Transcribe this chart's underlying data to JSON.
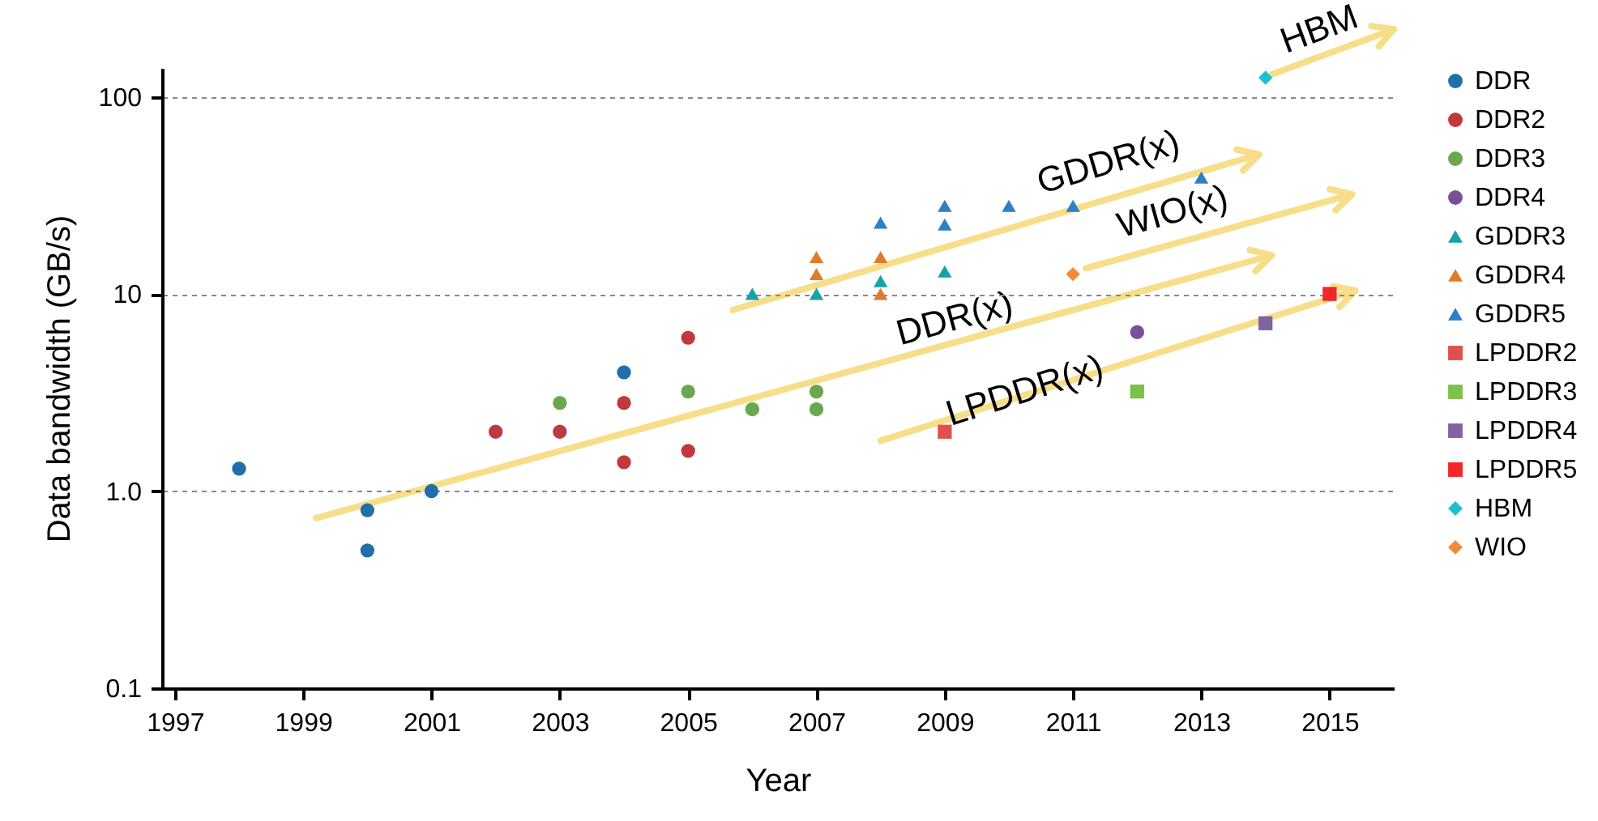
{
  "chart_data": {
    "type": "scatter",
    "xlabel": "Year",
    "ylabel": "Data bandwidth (GB/s)",
    "xlim": [
      1996.8,
      2016
    ],
    "xticks": [
      1997,
      1999,
      2001,
      2003,
      2005,
      2007,
      2009,
      2011,
      2013,
      2015
    ],
    "ylim": [
      0.1,
      140
    ],
    "yticks": [
      0.1,
      {
        "value": 1,
        "label": "1.0"
      },
      10,
      100
    ],
    "log": true,
    "grid": "y",
    "legend": "right",
    "annotations": [
      "HBM",
      "GDDR(x)",
      "WIO(x)",
      "DDR(x)",
      "LPDDR(x)"
    ],
    "series": [
      {
        "name": "DDR",
        "color": "#1f6fa8",
        "marker": "circle",
        "x": [
          1998,
          2000,
          2000,
          2001,
          2004
        ],
        "values": [
          1.3,
          0.8,
          0.5,
          1.0,
          4.0
        ]
      },
      {
        "name": "DDR2",
        "color": "#c0393b",
        "marker": "circle",
        "x": [
          2002,
          2003,
          2004,
          2004,
          2005,
          2005
        ],
        "values": [
          2.0,
          2.0,
          2.8,
          1.4,
          6.0,
          1.6
        ]
      },
      {
        "name": "DDR3",
        "color": "#6aa84f",
        "marker": "circle",
        "x": [
          2003,
          2005,
          2006,
          2007,
          2007
        ],
        "values": [
          2.8,
          3.2,
          2.6,
          3.2,
          2.6
        ]
      },
      {
        "name": "DDR4",
        "color": "#7a4f9a",
        "marker": "circle",
        "x": [
          2012
        ],
        "values": [
          6.4
        ]
      },
      {
        "name": "GDDR3",
        "color": "#17a2a8",
        "marker": "triangle",
        "x": [
          2006,
          2007,
          2008,
          2009
        ],
        "values": [
          10,
          10,
          11.6,
          13
        ]
      },
      {
        "name": "GDDR4",
        "color": "#e07b2a",
        "marker": "triangle",
        "x": [
          2007,
          2007,
          2008,
          2008
        ],
        "values": [
          15.4,
          12.6,
          15.4,
          10
        ]
      },
      {
        "name": "GDDR5",
        "color": "#2f7fc8",
        "marker": "triangle",
        "x": [
          2008,
          2009,
          2009,
          2010,
          2011,
          2013
        ],
        "values": [
          23,
          28,
          22.5,
          28,
          28,
          39
        ]
      },
      {
        "name": "LPDDR2",
        "color": "#e05050",
        "marker": "square",
        "x": [
          2009
        ],
        "values": [
          2.0
        ]
      },
      {
        "name": "LPDDR3",
        "color": "#7cc24a",
        "marker": "square",
        "x": [
          2012
        ],
        "values": [
          3.2
        ]
      },
      {
        "name": "LPDDR4",
        "color": "#8064a2",
        "marker": "square",
        "x": [
          2014
        ],
        "values": [
          7.1
        ]
      },
      {
        "name": "LPDDR5",
        "color": "#f02828",
        "marker": "square",
        "x": [
          2015
        ],
        "values": [
          10
        ]
      },
      {
        "name": "HBM",
        "color": "#1cc0d0",
        "marker": "diamond",
        "x": [
          2014
        ],
        "values": [
          125
        ]
      },
      {
        "name": "WIO",
        "color": "#f28c3c",
        "marker": "diamond",
        "x": [
          2011
        ],
        "values": [
          12.6
        ]
      }
    ]
  }
}
